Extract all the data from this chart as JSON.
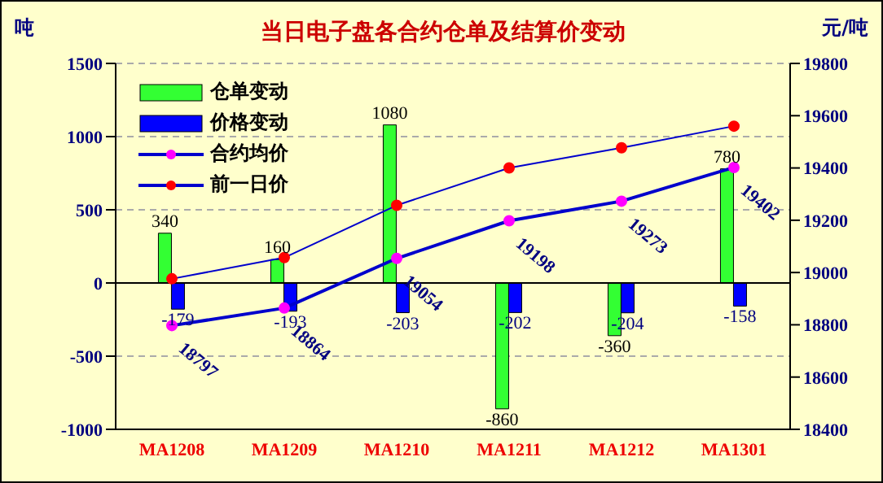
{
  "chart_data": {
    "type": "bar",
    "title": "当日电子盘各合约仓单及结算价变动",
    "ylabel": "吨",
    "y2label": "元/吨",
    "categories": [
      "MA1208",
      "MA1209",
      "MA1210",
      "MA1211",
      "MA1212",
      "MA1301"
    ],
    "series": [
      {
        "name": "仓单变动",
        "color": "#33ff33",
        "values": [
          340,
          160,
          1080,
          -860,
          -360,
          780
        ],
        "value_labels": [
          "340",
          "160",
          "1080",
          "-860",
          "-360",
          "780"
        ]
      },
      {
        "name": "价格变动",
        "color": "#0000ff",
        "values": [
          -179,
          -193,
          -203,
          -202,
          -204,
          -158
        ],
        "value_labels": [
          "-179",
          "-193",
          "-203",
          "-202",
          "-204",
          "-158"
        ]
      },
      {
        "name": "合约均价",
        "type": "line",
        "axis": "y2",
        "color": "#ff00ff",
        "values": [
          18797,
          18864,
          19054,
          19198,
          19273,
          19402
        ],
        "value_labels": [
          "18797",
          "18864",
          "19054",
          "19198",
          "19273",
          "19402"
        ]
      },
      {
        "name": "前一日价",
        "type": "line",
        "axis": "y2",
        "color": "#ff0000",
        "values": [
          18976,
          19057,
          19257,
          19400,
          19477,
          19560
        ]
      }
    ],
    "ylim": [
      -1000,
      1500
    ],
    "yticks": [
      -1000,
      -500,
      0,
      500,
      1000,
      1500
    ],
    "y2lim": [
      18400,
      19800
    ],
    "y2ticks": [
      18400,
      18600,
      18800,
      19000,
      19200,
      19400,
      19600,
      19800
    ],
    "grid": "y",
    "legend": "top left",
    "marker": "circle"
  }
}
